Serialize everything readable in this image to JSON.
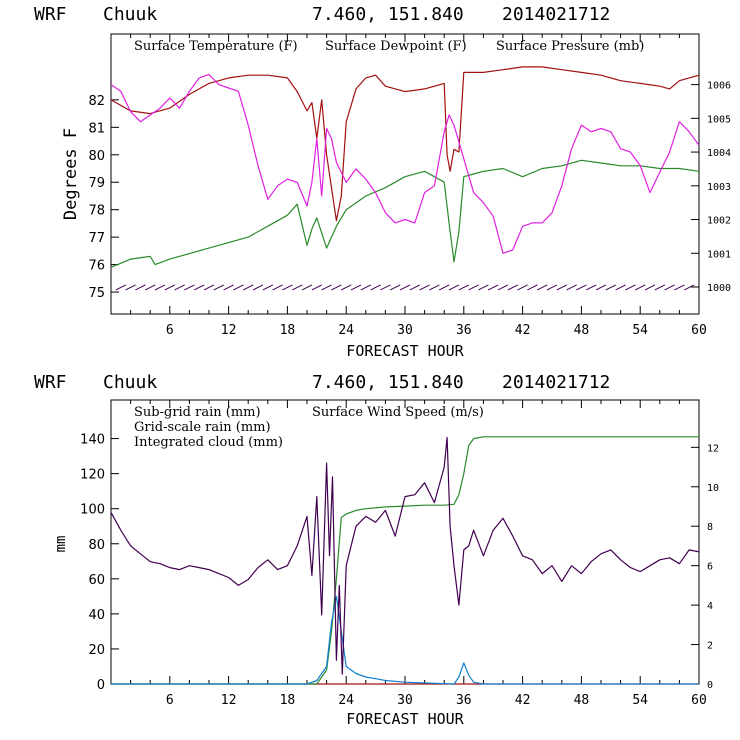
{
  "colors": {
    "temperature": "#a01010",
    "dewpoint": "#2a8a2a",
    "pressure": "#e020e0",
    "subgrid_rain": "#a01010",
    "gridscale_rain": "#2a8a2a",
    "cloud": "#1080d0",
    "wind": "#400050",
    "frame": "#000000"
  },
  "chart_data": [
    {
      "type": "line",
      "header": {
        "model": "WRF",
        "station": "Chuuk",
        "coords": "7.460, 151.840",
        "init": "2014021712"
      },
      "legend": {
        "temperature": "Surface Temperature (F)",
        "dewpoint": "Surface Dewpoint (F)",
        "pressure": "Surface Pressure (mb)"
      },
      "xlabel": "FORECAST HOUR",
      "ylabel": "Degrees F",
      "xlim": [
        0,
        60
      ],
      "ylim": [
        74.2,
        84.4
      ],
      "y2lim": [
        999.2,
        1007.5
      ],
      "xticks": [
        6,
        12,
        18,
        24,
        30,
        36,
        42,
        48,
        54,
        60
      ],
      "yticks": [
        75,
        76,
        77,
        78,
        79,
        80,
        81,
        82
      ],
      "y2ticks": [
        1000,
        1001,
        1002,
        1003,
        1004,
        1005,
        1006
      ],
      "series": [
        {
          "name": "Surface Temperature (F)",
          "axis": "left",
          "color_key": "temperature",
          "x": [
            0,
            2,
            4,
            6,
            8,
            10,
            12,
            14,
            16,
            18,
            19,
            20,
            20.5,
            21,
            21.5,
            22,
            23,
            23.5,
            24,
            25,
            26,
            27,
            28,
            30,
            32,
            33,
            34,
            34.3,
            34.6,
            35,
            35.5,
            36,
            37,
            38,
            40,
            42,
            44,
            46,
            48,
            50,
            52,
            54,
            56,
            57,
            58,
            60
          ],
          "y": [
            82.0,
            81.6,
            81.5,
            81.7,
            82.2,
            82.6,
            82.8,
            82.9,
            82.9,
            82.8,
            82.3,
            81.6,
            81.9,
            80.6,
            82.0,
            80.0,
            77.6,
            78.5,
            81.2,
            82.4,
            82.8,
            82.9,
            82.5,
            82.3,
            82.4,
            82.5,
            82.6,
            80.0,
            79.4,
            80.2,
            80.1,
            83.0,
            83.0,
            83.0,
            83.1,
            83.2,
            83.2,
            83.1,
            83.0,
            82.9,
            82.7,
            82.6,
            82.5,
            82.4,
            82.7,
            82.9
          ]
        },
        {
          "name": "Surface Dewpoint (F)",
          "axis": "left",
          "color_key": "dewpoint",
          "x": [
            0,
            2,
            4,
            4.5,
            6,
            8,
            10,
            12,
            14,
            16,
            18,
            19,
            20,
            20.5,
            21,
            22,
            23,
            24,
            26,
            28,
            30,
            32,
            33,
            34,
            34.5,
            35,
            35.5,
            36,
            37,
            38,
            40,
            42,
            44,
            46,
            48,
            50,
            52,
            54,
            56,
            58,
            60
          ],
          "y": [
            75.9,
            76.2,
            76.3,
            76.0,
            76.2,
            76.4,
            76.6,
            76.8,
            77.0,
            77.4,
            77.8,
            78.2,
            76.7,
            77.3,
            77.7,
            76.6,
            77.4,
            78.0,
            78.5,
            78.8,
            79.2,
            79.4,
            79.2,
            79.0,
            77.5,
            76.1,
            77.2,
            79.2,
            79.3,
            79.4,
            79.5,
            79.2,
            79.5,
            79.6,
            79.8,
            79.7,
            79.6,
            79.6,
            79.5,
            79.5,
            79.4
          ]
        },
        {
          "name": "Surface Pressure (mb)",
          "axis": "right",
          "color_key": "pressure",
          "x": [
            0,
            1,
            2,
            3,
            4,
            5,
            6,
            7,
            8,
            9,
            10,
            11,
            12,
            13,
            14,
            15,
            16,
            17,
            18,
            19,
            20,
            20.5,
            21,
            21.5,
            22,
            22.5,
            23,
            24,
            25,
            26,
            27,
            28,
            29,
            30,
            31,
            32,
            33,
            34,
            34.5,
            35,
            36,
            37,
            38,
            39,
            40,
            41,
            42,
            43,
            44,
            45,
            46,
            47,
            48,
            49,
            50,
            51,
            52,
            53,
            54,
            55,
            56,
            57,
            58,
            59,
            60
          ],
          "y": [
            1006.0,
            1005.8,
            1005.2,
            1004.9,
            1005.1,
            1005.3,
            1005.6,
            1005.3,
            1005.8,
            1006.2,
            1006.3,
            1006.0,
            1005.9,
            1005.8,
            1004.8,
            1003.6,
            1002.6,
            1003.0,
            1003.2,
            1003.1,
            1002.4,
            1003.1,
            1004.4,
            1002.7,
            1004.7,
            1004.4,
            1003.7,
            1003.1,
            1003.5,
            1003.2,
            1002.8,
            1002.2,
            1001.9,
            1002.0,
            1001.9,
            1002.8,
            1003.0,
            1004.6,
            1005.1,
            1004.8,
            1003.8,
            1002.8,
            1002.5,
            1002.1,
            1001.0,
            1001.1,
            1001.8,
            1001.9,
            1001.9,
            1002.2,
            1003.0,
            1004.1,
            1004.8,
            1004.6,
            1004.7,
            1004.6,
            1004.1,
            1004.0,
            1003.6,
            1002.8,
            1003.4,
            1004.0,
            1004.9,
            1004.6,
            1004.2
          ]
        }
      ],
      "wind_barb_hours": [
        1,
        2,
        3,
        4,
        5,
        6,
        7,
        8,
        9,
        10,
        11,
        12,
        13,
        14,
        15,
        16,
        17,
        18,
        19,
        20,
        21,
        22,
        23,
        24,
        25,
        26,
        27,
        28,
        29,
        30,
        31,
        32,
        33,
        34,
        35,
        36,
        37,
        38,
        39,
        40,
        41,
        42,
        43,
        44,
        45,
        46,
        47,
        48,
        49,
        50,
        51,
        52,
        53,
        54,
        55,
        56,
        57,
        58,
        59
      ]
    },
    {
      "type": "line",
      "header": {
        "model": "WRF",
        "station": "Chuuk",
        "coords": "7.460, 151.840",
        "init": "2014021712"
      },
      "legend": {
        "subgrid": "Sub-grid rain (mm)",
        "gridscale": "Grid-scale rain (mm)",
        "cloud": "Integrated cloud (mm)",
        "wind": "Surface Wind Speed (m/s)"
      },
      "xlabel": "FORECAST HOUR",
      "ylabel": "mm",
      "xlim": [
        0,
        60
      ],
      "ylim": [
        0,
        162
      ],
      "y2lim": [
        0,
        14.4
      ],
      "xticks": [
        6,
        12,
        18,
        24,
        30,
        36,
        42,
        48,
        54,
        60
      ],
      "yticks": [
        0,
        20,
        40,
        60,
        80,
        100,
        120,
        140
      ],
      "y2ticks": [
        0,
        2,
        4,
        6,
        8,
        10,
        12
      ],
      "series": [
        {
          "name": "Sub-grid rain (mm)",
          "axis": "left",
          "color_key": "subgrid_rain",
          "x": [
            0,
            60
          ],
          "y": [
            0,
            0
          ]
        },
        {
          "name": "Grid-scale rain (mm)",
          "axis": "left",
          "color_key": "gridscale_rain",
          "x": [
            0,
            21,
            22,
            22.5,
            23,
            23.5,
            24,
            25,
            26,
            28,
            30,
            32,
            34,
            35,
            35.5,
            36,
            36.5,
            37,
            38,
            42,
            48,
            54,
            60
          ],
          "y": [
            0,
            0,
            8,
            30,
            60,
            95,
            97,
            99,
            100,
            101,
            101.5,
            102,
            102,
            102.5,
            108,
            120,
            136,
            140,
            141,
            141,
            141,
            141,
            141
          ]
        },
        {
          "name": "Integrated cloud (mm)",
          "axis": "left",
          "color_key": "cloud",
          "x": [
            0,
            20,
            21,
            22,
            22.5,
            23,
            23.5,
            24,
            25,
            26,
            27,
            28,
            30,
            35,
            35.5,
            36,
            36.5,
            37,
            38,
            40,
            60
          ],
          "y": [
            0,
            0,
            2,
            10,
            35,
            50,
            30,
            10,
            6,
            4,
            3,
            2,
            1,
            0,
            4,
            12,
            5,
            1,
            0,
            0,
            0
          ]
        },
        {
          "name": "Surface Wind Speed (m/s)",
          "axis": "right",
          "color_key": "wind",
          "x": [
            0,
            1,
            2,
            3,
            4,
            5,
            6,
            7,
            8,
            9,
            10,
            11,
            12,
            13,
            14,
            15,
            16,
            17,
            18,
            19,
            20,
            20.5,
            21,
            21.5,
            22,
            22.3,
            22.6,
            23,
            23.3,
            23.6,
            24,
            25,
            26,
            27,
            28,
            29,
            30,
            31,
            32,
            33,
            34,
            34.3,
            34.6,
            35,
            35.5,
            36,
            36.5,
            37,
            38,
            39,
            40,
            41,
            42,
            43,
            44,
            45,
            46,
            47,
            48,
            49,
            50,
            51,
            52,
            53,
            54,
            55,
            56,
            57,
            58,
            59,
            60
          ],
          "y": [
            8.7,
            7.8,
            7.0,
            6.6,
            6.2,
            6.1,
            5.9,
            5.8,
            6.0,
            5.9,
            5.8,
            5.6,
            5.4,
            5.0,
            5.3,
            5.9,
            6.3,
            5.8,
            6.0,
            7.0,
            8.5,
            5.5,
            9.5,
            3.5,
            11.2,
            6.5,
            10.5,
            1.2,
            5.0,
            0.5,
            6.0,
            8.0,
            8.5,
            8.2,
            8.8,
            7.5,
            9.5,
            9.6,
            10.2,
            9.2,
            11.0,
            12.5,
            8.0,
            6.0,
            4.0,
            6.8,
            7.0,
            7.8,
            6.5,
            7.8,
            8.4,
            7.5,
            6.5,
            6.3,
            5.6,
            6.0,
            5.2,
            6.0,
            5.6,
            6.2,
            6.6,
            6.8,
            6.3,
            5.9,
            5.7,
            6.0,
            6.3,
            6.4,
            6.1,
            6.8,
            6.7
          ]
        }
      ]
    }
  ]
}
